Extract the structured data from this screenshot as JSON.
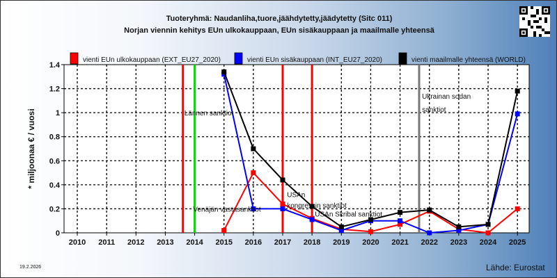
{
  "header": {
    "title_line1": "Tuoteryhmä: Naudanliha,tuore,jäähdytetty,jäädytetty (Sitc 011)",
    "title_line2": "Norjan viennin kehitys EUn ulkokauppaan, EUn sisäkauppaan ja maailmalle yhteensä"
  },
  "footer": {
    "date": "19.2.2026",
    "source": "Lähde: Eurostat"
  },
  "chart_data": {
    "type": "line",
    "ylabel": "* miljoonaa € / vuosi",
    "xlabel": "",
    "categories": [
      "2010",
      "2011",
      "2012",
      "2013",
      "2014",
      "2015",
      "2016",
      "2017",
      "2018",
      "2019",
      "2020",
      "2021",
      "2022",
      "2023",
      "2024",
      "2025"
    ],
    "ylim": [
      0,
      1.4
    ],
    "yticks": [
      "0",
      "0.2",
      "0.4",
      "0.6",
      "0.8",
      "1",
      "1.2",
      "1.4"
    ],
    "grid": true,
    "legend_position": "top",
    "series": [
      {
        "name": "vienti EUn ulkokauppaan (EXT_EU27_2020)",
        "color": "#ff0000",
        "values": [
          null,
          null,
          null,
          null,
          null,
          0.02,
          0.5,
          0.24,
          0.12,
          0.03,
          0.01,
          0.07,
          0.18,
          0.03,
          0.0,
          0.2
        ]
      },
      {
        "name": "vienti EUn sisäkauppaan (INT_EU27_2020)",
        "color": "#0000ff",
        "values": [
          null,
          null,
          null,
          null,
          null,
          1.32,
          0.2,
          0.2,
          0.11,
          0.02,
          0.1,
          0.1,
          0.0,
          0.02,
          0.07,
          0.99
        ]
      },
      {
        "name": "vienti maailmalle yhteensä (WORLD)",
        "color": "#000000",
        "values": [
          null,
          null,
          null,
          null,
          null,
          1.34,
          0.7,
          0.44,
          0.22,
          0.05,
          0.11,
          0.17,
          0.19,
          0.05,
          0.07,
          1.18
        ]
      }
    ],
    "event_lines": [
      {
        "x": 2013.6,
        "color": "#ff0000"
      },
      {
        "x": 2014.0,
        "color": "#00dd00"
      },
      {
        "x": 2017.0,
        "color": "#ff0000"
      },
      {
        "x": 2018.0,
        "color": "#ff0000"
      },
      {
        "x": 2021.65,
        "color": "#777777"
      }
    ],
    "annotations": [
      {
        "text": "Lännen sanktiot",
        "x": 2013.6,
        "y": 1.0
      },
      {
        "text": "Venäjän vastasanktiot",
        "x": 2013.9,
        "y": 0.2
      },
      {
        "text": "USAn",
        "x": 2017.1,
        "y": 0.32
      },
      {
        "text": "kongressin sanktiot",
        "x": 2017.1,
        "y": 0.23
      },
      {
        "text": "USAn Skribal sanktiot",
        "x": 2018.05,
        "y": 0.16
      },
      {
        "text": "Ukrainan sodan",
        "x": 2021.7,
        "y": 1.14
      },
      {
        "text": "sanktiot",
        "x": 2021.7,
        "y": 1.03
      }
    ]
  }
}
